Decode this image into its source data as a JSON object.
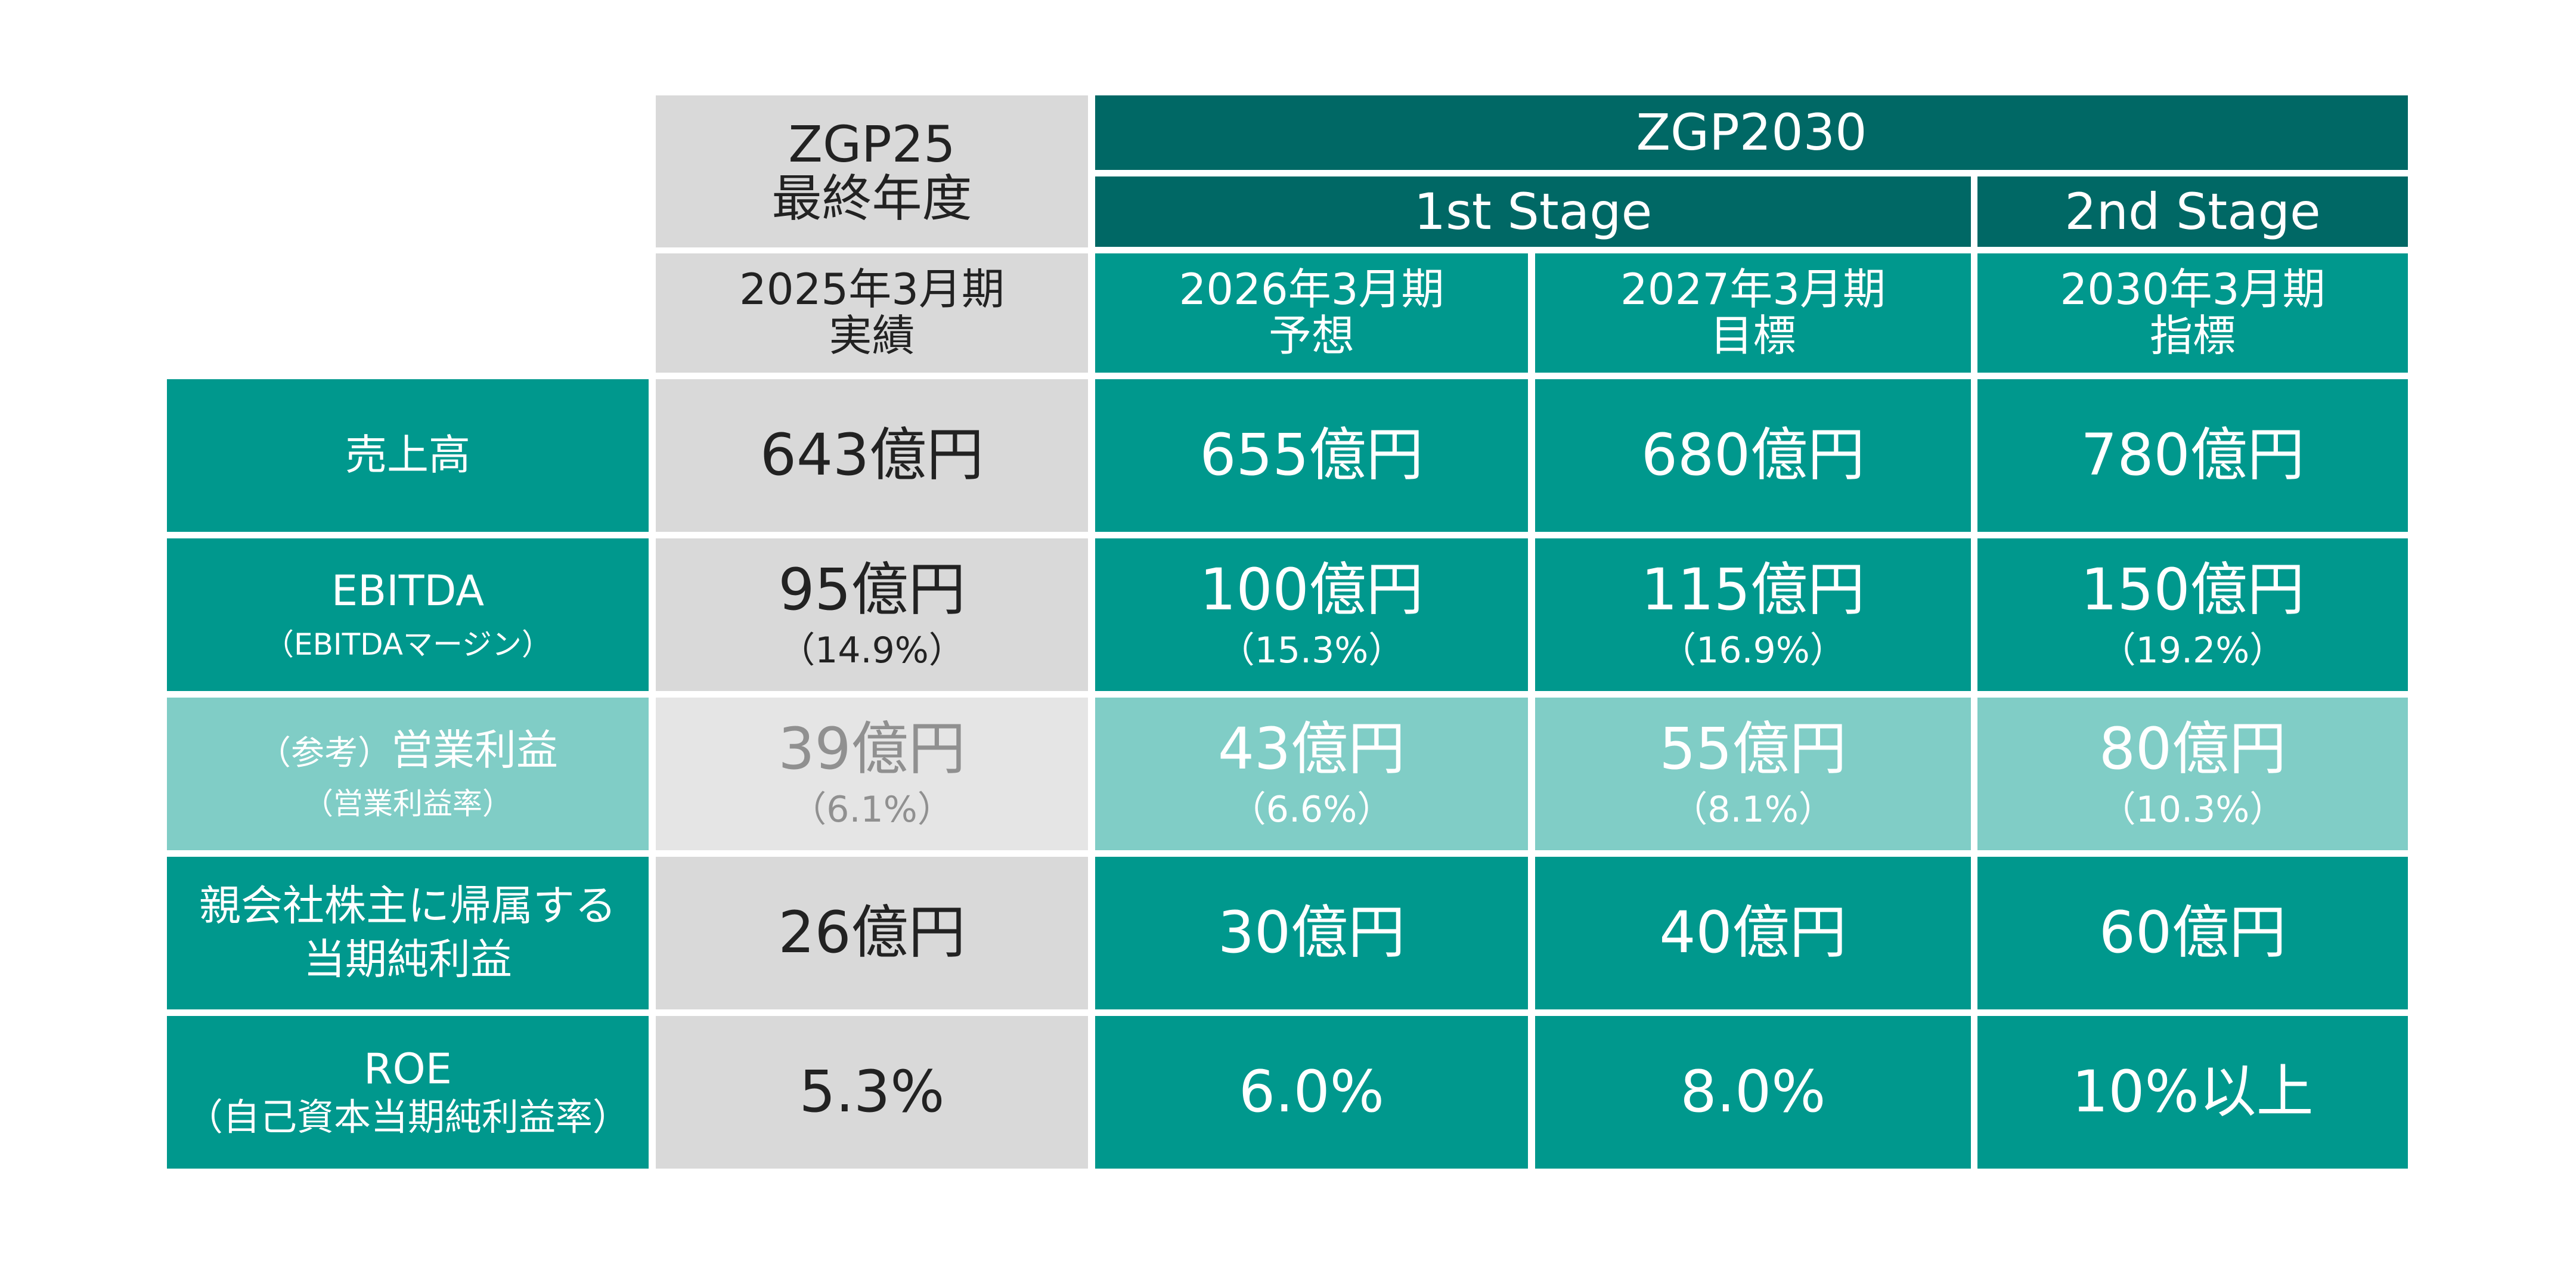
{
  "header": {
    "zgp25_line1": "ZGP25",
    "zgp25_line2": "最終年度",
    "zgp2030": "ZGP2030",
    "stage1": "1st Stage",
    "stage2": "2nd Stage"
  },
  "columns": [
    {
      "line1": "2025年3月期",
      "line2": "実績"
    },
    {
      "line1": "2026年3月期",
      "line2": "予想"
    },
    {
      "line1": "2027年3月期",
      "line2": "目標"
    },
    {
      "line1": "2030年3月期",
      "line2": "指標"
    }
  ],
  "rows": [
    {
      "label": "売上高",
      "label_sub": "",
      "values": [
        "643億円",
        "655億円",
        "680億円",
        "780億円"
      ],
      "subs": [
        "",
        "",
        "",
        ""
      ]
    },
    {
      "label": "EBITDA",
      "label_sub": "（EBITDAマージン）",
      "values": [
        "95億円",
        "100億円",
        "115億円",
        "150億円"
      ],
      "subs": [
        "（14.9%）",
        "（15.3%）",
        "（16.9%）",
        "（19.2%）"
      ]
    },
    {
      "label_prefix": "（参考）",
      "label": "営業利益",
      "label_sub": "（営業利益率）",
      "values": [
        "39億円",
        "43億円",
        "55億円",
        "80億円"
      ],
      "subs": [
        "（6.1%）",
        "（6.6%）",
        "（8.1%）",
        "（10.3%）"
      ]
    },
    {
      "label": "親会社株主に帰属する",
      "label_sub": "当期純利益",
      "values": [
        "26億円",
        "30億円",
        "40億円",
        "60億円"
      ],
      "subs": [
        "",
        "",
        "",
        ""
      ]
    },
    {
      "label": "ROE",
      "label_sub": "（自己資本当期純利益率）",
      "values": [
        "5.3%",
        "6.0%",
        "8.0%",
        "10%以上"
      ],
      "subs": [
        "",
        "",
        "",
        ""
      ]
    }
  ],
  "chart_data": {
    "type": "table",
    "column_headers": [
      "2025年3月期 実績",
      "2026年3月期 予想",
      "2027年3月期 目標",
      "2030年3月期 指標"
    ],
    "row_headers": [
      "売上高",
      "EBITDA",
      "（参考）営業利益",
      "親会社株主に帰属する当期純利益",
      "ROE"
    ],
    "cells": [
      [
        "643億円",
        "655億円",
        "680億円",
        "780億円"
      ],
      [
        "95億円（14.9%）",
        "100億円（15.3%）",
        "115億円（16.9%）",
        "150億円（19.2%）"
      ],
      [
        "39億円（6.1%）",
        "43億円（6.6%）",
        "55億円（8.1%）",
        "80億円（10.3%）"
      ],
      [
        "26億円",
        "30億円",
        "40億円",
        "60億円"
      ],
      [
        "5.3%",
        "6.0%",
        "8.0%",
        "10%以上"
      ]
    ]
  },
  "colors": {
    "dark_teal": "#006865",
    "teal": "#00988d",
    "light_teal": "#80cdc6",
    "gray": "#d9d9d9",
    "light_gray": "#e5e5e5"
  }
}
